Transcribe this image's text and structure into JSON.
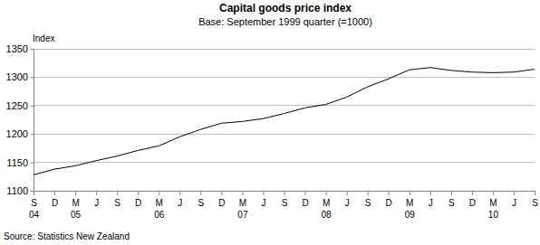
{
  "chart_data": {
    "type": "line",
    "title": "Capital goods price index",
    "subtitle": "Base: September 1999 quarter (=1000)",
    "y_label": "Index",
    "source": "Source: Statistics New Zealand",
    "categories": [
      "S\n04",
      "D",
      "M\n05",
      "J",
      "S",
      "D",
      "M\n06",
      "J",
      "S",
      "D",
      "M\n07",
      "J",
      "S",
      "D",
      "M\n08",
      "J",
      "S",
      "D",
      "M\n09",
      "J",
      "S",
      "D",
      "M\n10",
      "J",
      "S"
    ],
    "values": [
      1128,
      1138,
      1144,
      1153,
      1161,
      1171,
      1179,
      1195,
      1208,
      1219,
      1222,
      1227,
      1236,
      1246,
      1252,
      1265,
      1283,
      1297,
      1313,
      1317,
      1312,
      1309,
      1308,
      1309,
      1314
    ],
    "color": "#000000",
    "ylim": [
      1100,
      1350
    ],
    "yticks": [
      1100,
      1150,
      1200,
      1250,
      1300,
      1350
    ],
    "grid": true
  }
}
